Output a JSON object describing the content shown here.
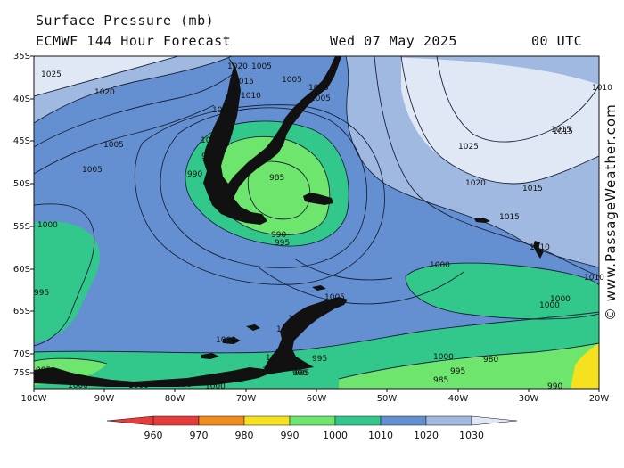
{
  "header": {
    "title": "Surface Pressure (mb)",
    "subtitle": "ECMWF 144 Hour Forecast",
    "datetime": "Wed 07 May 2025",
    "utc": "00 UTC"
  },
  "credit": "© www.PassageWeather.com",
  "axes": {
    "lat_labels": [
      "35S",
      "40S",
      "45S",
      "50S",
      "55S",
      "60S",
      "65S",
      "70S",
      "75S"
    ],
    "lon_labels": [
      "100W",
      "90W",
      "80W",
      "70W",
      "60W",
      "50W",
      "40W",
      "30W",
      "20W"
    ]
  },
  "colorbar": {
    "labels": [
      "960",
      "970",
      "980",
      "990",
      "1000",
      "1010",
      "1020",
      "1030"
    ],
    "colors": [
      "#e83c3c",
      "#f08c1e",
      "#f5e11e",
      "#6ee66e",
      "#32c88c",
      "#6490d2",
      "#a0b9e1",
      "#e1e8f5"
    ]
  },
  "isobar_labels": [
    {
      "text": "1025",
      "key": "a"
    },
    {
      "text": "1020",
      "key": "b"
    },
    {
      "text": "1020",
      "key": "c"
    },
    {
      "text": "1015",
      "key": "d"
    },
    {
      "text": "1005",
      "key": "e"
    },
    {
      "text": "1005",
      "key": "f"
    },
    {
      "text": "1010",
      "key": "g"
    },
    {
      "text": "1005",
      "key": "h"
    },
    {
      "text": "1000",
      "key": "i"
    },
    {
      "text": "1005",
      "key": "j"
    },
    {
      "text": "1005",
      "key": "k"
    },
    {
      "text": "995",
      "key": "l"
    },
    {
      "text": "990",
      "key": "m"
    },
    {
      "text": "985",
      "key": "n"
    },
    {
      "text": "990",
      "key": "o"
    },
    {
      "text": "995",
      "key": "p"
    },
    {
      "text": "1000",
      "key": "q"
    },
    {
      "text": "995",
      "key": "r"
    },
    {
      "text": "1025",
      "key": "s"
    },
    {
      "text": "1020",
      "key": "t"
    },
    {
      "text": "1015",
      "key": "u"
    },
    {
      "text": "1015",
      "key": "v"
    },
    {
      "text": "1015",
      "key": "w"
    },
    {
      "text": "1010",
      "key": "x"
    },
    {
      "text": "1000",
      "key": "y"
    },
    {
      "text": "1000",
      "key": "z"
    },
    {
      "text": "1000",
      "key": "aa"
    },
    {
      "text": "1005",
      "key": "ab"
    },
    {
      "text": "1000",
      "key": "ac"
    },
    {
      "text": "1000",
      "key": "ad"
    },
    {
      "text": "1000",
      "key": "ae"
    },
    {
      "text": "995",
      "key": "af"
    },
    {
      "text": "1000",
      "key": "ag"
    },
    {
      "text": "995",
      "key": "ah"
    },
    {
      "text": "980",
      "key": "ai"
    },
    {
      "text": "985",
      "key": "aj"
    },
    {
      "text": "995",
      "key": "ak"
    },
    {
      "text": "1000",
      "key": "al"
    },
    {
      "text": "1000",
      "key": "am"
    },
    {
      "text": "1000",
      "key": "an"
    },
    {
      "text": "995",
      "key": "ao"
    },
    {
      "text": "985",
      "key": "ap"
    },
    {
      "text": "990",
      "key": "aq"
    },
    {
      "text": "1010",
      "key": "ar"
    },
    {
      "text": "1015",
      "key": "as"
    },
    {
      "text": "1010",
      "key": "at"
    },
    {
      "text": "1005",
      "key": "au"
    },
    {
      "text": "1005",
      "key": "av"
    },
    {
      "text": "1000",
      "key": "aw"
    },
    {
      "text": "995",
      "key": "ax"
    },
    {
      "text": "1000",
      "key": "ay"
    },
    {
      "text": "990",
      "key": "az"
    }
  ]
}
